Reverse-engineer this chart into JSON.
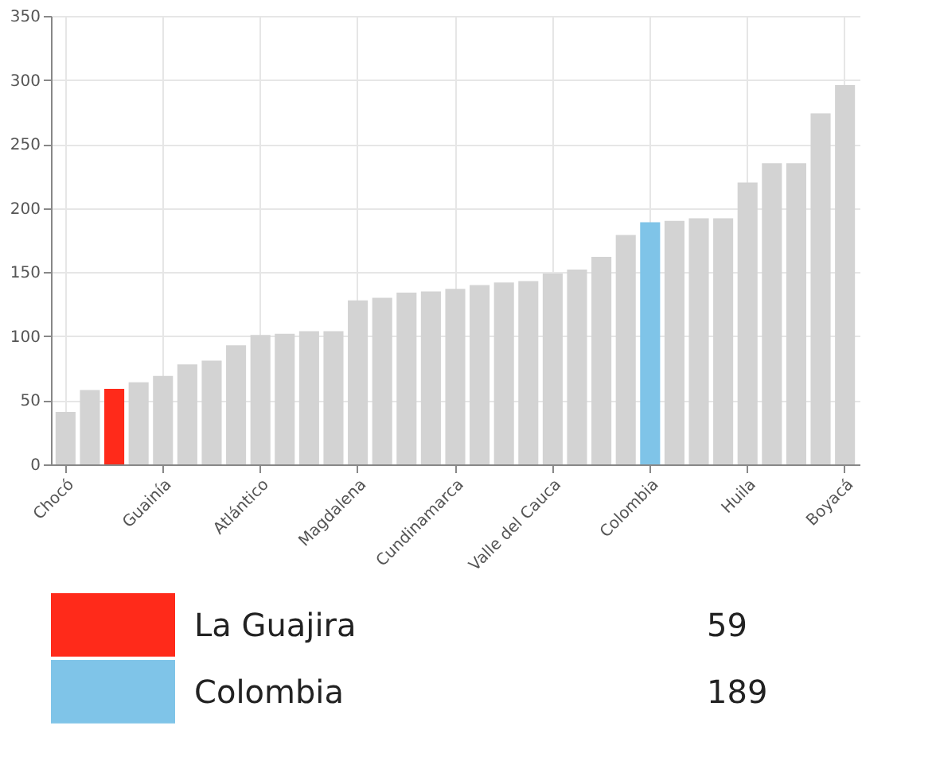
{
  "chart_data": {
    "type": "bar",
    "categories": [
      "Chocó",
      null,
      null,
      null,
      "Guainía",
      null,
      null,
      null,
      "Atlántico",
      null,
      null,
      null,
      "Magdalena",
      null,
      null,
      null,
      "Cundinamarca",
      null,
      null,
      null,
      "Valle del Cauca",
      null,
      null,
      null,
      "Colombia",
      null,
      null,
      null,
      "Huila",
      null,
      null,
      null,
      "Boyacá"
    ],
    "series": [
      {
        "color": "#d3d3d3",
        "values": [
          41,
          58,
          null,
          64,
          69,
          78,
          81,
          93,
          101,
          102,
          104,
          104,
          128,
          130,
          134,
          135,
          137,
          140,
          142,
          143,
          149,
          152,
          162,
          179,
          null,
          190,
          192,
          192,
          220,
          235,
          235,
          274,
          296
        ]
      },
      {
        "name": "La Guajira",
        "color": "#ff2a1a",
        "values": [
          null,
          null,
          59,
          null,
          null,
          null,
          null,
          null,
          null,
          null,
          null,
          null,
          null,
          null,
          null,
          null,
          null,
          null,
          null,
          null,
          null,
          null,
          null,
          null,
          null,
          null,
          null,
          null,
          null,
          null,
          null,
          null,
          null
        ]
      },
      {
        "name": "Colombia",
        "color": "#7fc4e8",
        "values": [
          null,
          null,
          null,
          null,
          null,
          null,
          null,
          null,
          null,
          null,
          null,
          null,
          null,
          null,
          null,
          null,
          null,
          null,
          null,
          null,
          null,
          null,
          null,
          null,
          189,
          null,
          null,
          null,
          null,
          null,
          null,
          null,
          null
        ]
      }
    ],
    "annotations": [
      "59",
      "189"
    ],
    "ylim": [
      0,
      350
    ],
    "yticks": [
      0,
      50,
      100,
      150,
      200,
      250,
      300,
      350
    ],
    "grid": true,
    "legend": "bottom"
  }
}
